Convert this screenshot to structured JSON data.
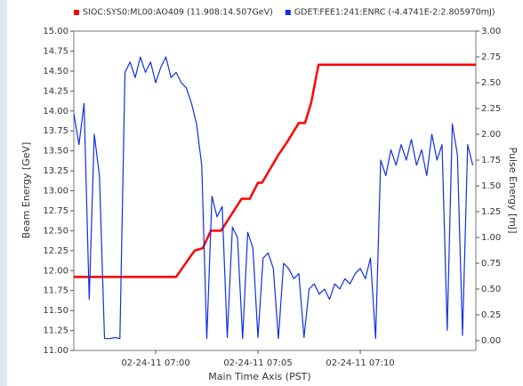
{
  "chart_data": {
    "type": "line",
    "x_label": "Main Time Axis (PST)",
    "y_label": "Beam Energy [GeV]",
    "y2_label": "Pulse Energy [mJ]",
    "xlim": [
      -4,
      15.65
    ],
    "xticks": [
      {
        "value": 0,
        "label": "02-24-11 07:00"
      },
      {
        "value": 5,
        "label": "02-24-11 07:05"
      },
      {
        "value": 10,
        "label": "02-24-11 07:10"
      }
    ],
    "ylim": [
      11.0,
      15.0
    ],
    "yticks": [
      {
        "value": 11.0,
        "label": "11.00"
      },
      {
        "value": 11.25,
        "label": "11.25"
      },
      {
        "value": 11.5,
        "label": "11.50"
      },
      {
        "value": 11.75,
        "label": "11.75"
      },
      {
        "value": 12.0,
        "label": "12.00"
      },
      {
        "value": 12.25,
        "label": "12.25"
      },
      {
        "value": 12.5,
        "label": "12.50"
      },
      {
        "value": 12.75,
        "label": "12.75"
      },
      {
        "value": 13.0,
        "label": "13.00"
      },
      {
        "value": 13.25,
        "label": "13.25"
      },
      {
        "value": 13.5,
        "label": "13.50"
      },
      {
        "value": 13.75,
        "label": "13.75"
      },
      {
        "value": 14.0,
        "label": "14.00"
      },
      {
        "value": 14.25,
        "label": "14.25"
      },
      {
        "value": 14.5,
        "label": "14.50"
      },
      {
        "value": 14.75,
        "label": "14.75"
      },
      {
        "value": 15.0,
        "label": "15.00"
      }
    ],
    "y2lim": [
      -0.095,
      3.0
    ],
    "y2ticks": [
      {
        "value": 0,
        "label": "0.00"
      },
      {
        "value": 0.25,
        "label": "0.25"
      },
      {
        "value": 0.5,
        "label": "0.50"
      },
      {
        "value": 0.75,
        "label": "0.75"
      },
      {
        "value": 1.0,
        "label": "1.00"
      },
      {
        "value": 1.25,
        "label": "1.25"
      },
      {
        "value": 1.5,
        "label": "1.50"
      },
      {
        "value": 1.75,
        "label": "1.75"
      },
      {
        "value": 2.0,
        "label": "2.00"
      },
      {
        "value": 2.25,
        "label": "2.25"
      },
      {
        "value": 2.5,
        "label": "2.50"
      },
      {
        "value": 2.75,
        "label": "2.75"
      },
      {
        "value": 3.0,
        "label": "3.00"
      }
    ],
    "series": [
      {
        "name": "SIOC:SYS0:ML00:AO409 (11.908:14.507GeV)",
        "color": "#ff0000",
        "axis": "y",
        "x": [
          -4,
          1.0,
          1.9,
          2.3,
          2.7,
          3.2,
          3.5,
          4.2,
          4.6,
          5.0,
          5.2,
          6.0,
          6.4,
          7.0,
          7.3,
          7.6,
          7.96,
          15.65
        ],
        "values": [
          11.92,
          11.92,
          12.25,
          12.28,
          12.5,
          12.5,
          12.62,
          12.9,
          12.9,
          13.1,
          13.1,
          13.45,
          13.6,
          13.85,
          13.85,
          14.1,
          14.58,
          14.58
        ]
      },
      {
        "name": "GDET:FEE1:241:ENRC (-4.4741E-2:2.805970mJ)",
        "color": "#1030e0",
        "axis": "y2",
        "x": [
          -4,
          -3.75,
          -3.5,
          -3.25,
          -3,
          -2.75,
          -2.5,
          -2.25,
          -2,
          -1.75,
          -1.5,
          -1.25,
          -1,
          -0.75,
          -0.5,
          -0.25,
          0,
          0.25,
          0.5,
          0.75,
          1,
          1.25,
          1.5,
          1.75,
          2,
          2.25,
          2.5,
          2.75,
          3,
          3.25,
          3.5,
          3.75,
          4,
          4.25,
          4.5,
          4.75,
          5,
          5.25,
          5.5,
          5.75,
          6,
          6.25,
          6.5,
          6.75,
          7,
          7.25,
          7.5,
          7.75,
          8,
          8.25,
          8.5,
          8.75,
          9,
          9.25,
          9.5,
          9.75,
          10,
          10.25,
          10.5,
          10.75,
          11,
          11.25,
          11.5,
          11.75,
          12,
          12.25,
          12.5,
          12.75,
          13,
          13.25,
          13.5,
          13.75,
          14,
          14.25,
          14.5,
          14.75,
          15,
          15.25,
          15.5
        ],
        "values": [
          2.2,
          1.9,
          2.3,
          0.4,
          2.0,
          1.6,
          0.02,
          0.02,
          0.03,
          0.02,
          2.6,
          2.7,
          2.55,
          2.75,
          2.6,
          2.7,
          2.5,
          2.65,
          2.75,
          2.55,
          2.6,
          2.5,
          2.45,
          2.3,
          2.1,
          1.7,
          0.02,
          1.4,
          1.2,
          1.3,
          0.03,
          1.1,
          1.0,
          0.02,
          1.05,
          0.9,
          0.03,
          0.8,
          0.85,
          0.7,
          0.02,
          0.75,
          0.7,
          0.6,
          0.65,
          0.03,
          0.5,
          0.55,
          0.45,
          0.5,
          0.4,
          0.55,
          0.5,
          0.6,
          0.55,
          0.65,
          0.7,
          0.6,
          0.8,
          0.02,
          1.75,
          1.6,
          1.85,
          1.7,
          1.9,
          1.75,
          1.95,
          1.7,
          1.85,
          1.6,
          2.0,
          1.75,
          1.9,
          0.1,
          2.1,
          1.8,
          0.05,
          1.9,
          1.7
        ]
      }
    ]
  }
}
